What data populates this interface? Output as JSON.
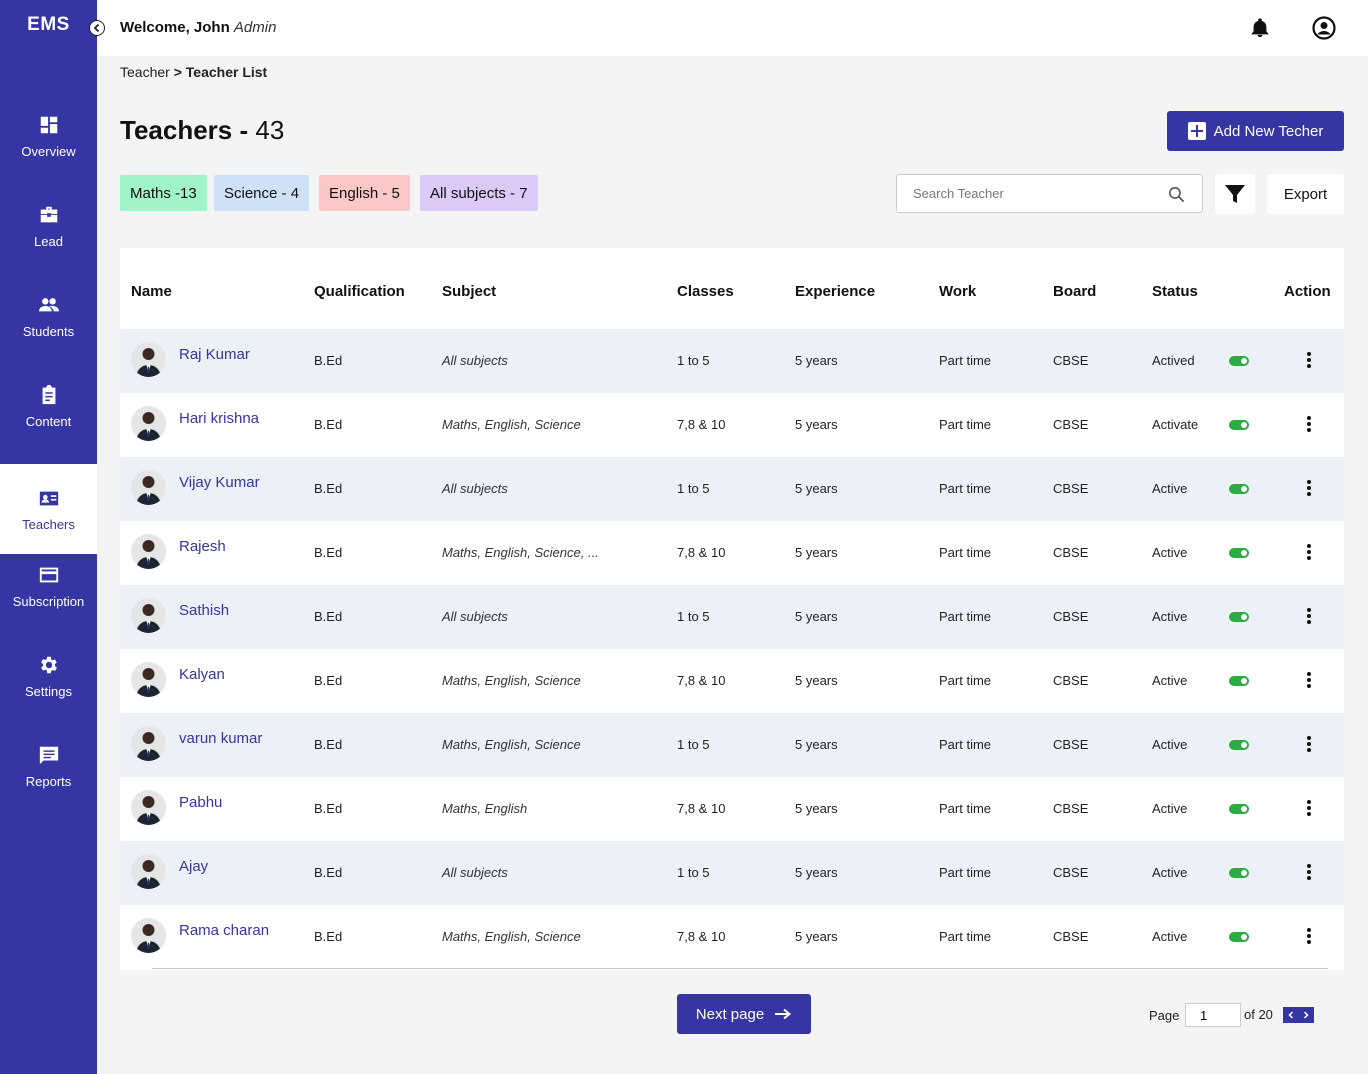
{
  "sidebar": {
    "brand": "EMS",
    "items": [
      {
        "label": "Overview",
        "icon": "dashboard-icon"
      },
      {
        "label": "Lead",
        "icon": "briefcase-icon"
      },
      {
        "label": "Students",
        "icon": "people-icon"
      },
      {
        "label": "Content",
        "icon": "clipboard-icon"
      },
      {
        "label": "Teachers",
        "icon": "id-card-icon",
        "active": true
      },
      {
        "label": "Subscription",
        "icon": "credit-card-icon"
      },
      {
        "label": "Settings",
        "icon": "gear-icon"
      },
      {
        "label": "Reports",
        "icon": "message-icon"
      }
    ]
  },
  "header": {
    "welcome": "Welcome, John",
    "role": "Admin"
  },
  "breadcrumb": {
    "parent": "Teacher",
    "separator": ">",
    "current": "Teacher List"
  },
  "page": {
    "title": "Teachers -",
    "count": "43",
    "add_button": "Add New Techer"
  },
  "chips": [
    {
      "label": "Maths -13",
      "color": "#9ff5c8"
    },
    {
      "label": "Science - 4",
      "color": "#cfe1f7"
    },
    {
      "label": "English - 5",
      "color": "#fbc7c7"
    },
    {
      "label": "All subjects - 7",
      "color": "#dcc9f7"
    }
  ],
  "search": {
    "placeholder": "Search Teacher"
  },
  "export_label": "Export",
  "table": {
    "headers": [
      "Name",
      "Qualification",
      "Subject",
      "Classes",
      "Experience",
      "Work",
      "Board",
      "Status",
      "Action"
    ],
    "rows": [
      {
        "name": "Raj Kumar",
        "qualification": "B.Ed",
        "subject": "All subjects",
        "classes": "1 to 5",
        "experience": "5 years",
        "work": "Part time",
        "board": "CBSE",
        "status": "Actived"
      },
      {
        "name": "Hari krishna",
        "qualification": "B.Ed",
        "subject": "Maths, English, Science",
        "classes": "7,8 & 10",
        "experience": "5 years",
        "work": "Part time",
        "board": "CBSE",
        "status": "Activate"
      },
      {
        "name": "Vijay Kumar",
        "qualification": "B.Ed",
        "subject": "All subjects",
        "classes": "1 to 5",
        "experience": "5 years",
        "work": "Part time",
        "board": "CBSE",
        "status": "Active"
      },
      {
        "name": "Rajesh",
        "qualification": "B.Ed",
        "subject": "Maths, English, Science, ...",
        "classes": "7,8 & 10",
        "experience": "5 years",
        "work": "Part time",
        "board": "CBSE",
        "status": "Active"
      },
      {
        "name": "Sathish",
        "qualification": "B.Ed",
        "subject": "All subjects",
        "classes": "1 to 5",
        "experience": "5 years",
        "work": "Part time",
        "board": "CBSE",
        "status": "Active"
      },
      {
        "name": "Kalyan",
        "qualification": "B.Ed",
        "subject": "Maths, English, Science",
        "classes": "7,8 & 10",
        "experience": "5 years",
        "work": "Part time",
        "board": "CBSE",
        "status": "Active"
      },
      {
        "name": "varun kumar",
        "qualification": "B.Ed",
        "subject": "Maths, English, Science",
        "classes": "1 to 5",
        "experience": "5 years",
        "work": "Part time",
        "board": "CBSE",
        "status": "Active"
      },
      {
        "name": "Pabhu",
        "qualification": "B.Ed",
        "subject": "Maths, English",
        "classes": "7,8 & 10",
        "experience": "5 years",
        "work": "Part time",
        "board": "CBSE",
        "status": "Active"
      },
      {
        "name": "Ajay",
        "qualification": "B.Ed",
        "subject": "All subjects",
        "classes": "1 to 5",
        "experience": "5 years",
        "work": "Part time",
        "board": "CBSE",
        "status": "Active"
      },
      {
        "name": "Rama charan",
        "qualification": "B.Ed",
        "subject": "Maths, English, Science",
        "classes": "7,8 & 10",
        "experience": "5 years",
        "work": "Part time",
        "board": "CBSE",
        "status": "Active"
      }
    ]
  },
  "pagination": {
    "next_label": "Next page",
    "page_label": "Page",
    "current": "1",
    "of_label": "of 20"
  }
}
